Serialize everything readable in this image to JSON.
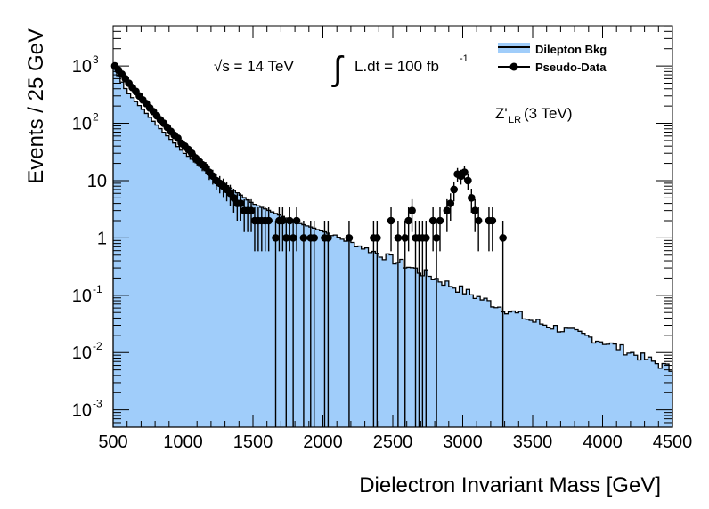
{
  "chart_data": {
    "type": "area",
    "title": "",
    "xlabel": "Dielectron Invariant Mass [GeV]",
    "ylabel": "Events / 25 GeV",
    "xlim": [
      500,
      4500
    ],
    "ylim_log10": [
      -3.3,
      3.7
    ],
    "y_scale": "log",
    "bin_width": 25,
    "x_ticks": [
      500,
      1000,
      1500,
      2000,
      2500,
      3000,
      3500,
      4000,
      4500
    ],
    "y_ticks": [
      {
        "power": -3,
        "base": "10",
        "exp": "-3"
      },
      {
        "power": -2,
        "base": "10",
        "exp": "-2"
      },
      {
        "power": -1,
        "base": "10",
        "exp": "-1"
      },
      {
        "power": 0,
        "base": "1",
        "exp": ""
      },
      {
        "power": 1,
        "base": "10",
        "exp": ""
      },
      {
        "power": 2,
        "base": "10",
        "exp": "2"
      },
      {
        "power": 3,
        "base": "10",
        "exp": "3"
      }
    ],
    "legend": {
      "position": "top-right",
      "entries": [
        {
          "label": "Dilepton Bkg",
          "style": "filled"
        },
        {
          "label": "Pseudo-Data",
          "style": "marker"
        }
      ]
    },
    "annotations": {
      "energy": "√s = 14 TeV",
      "lumi_sign": "∫",
      "lumi_text": "L.dt = 100 fb",
      "lumi_exp": "-1",
      "model_main": "Z'",
      "model_sub": "LR",
      "model_rest": " (3 TeV)"
    },
    "colors": {
      "background_fill": "#a0cdfa",
      "line": "#000000",
      "marker": "#000000"
    },
    "series": [
      {
        "name": "Dilepton Bkg",
        "kind": "histogram",
        "bkg_log10_knots": [
          [
            500,
            3.0
          ],
          [
            600,
            2.55
          ],
          [
            800,
            2.0
          ],
          [
            1000,
            1.5
          ],
          [
            1200,
            1.1
          ],
          [
            1500,
            0.6
          ],
          [
            1800,
            0.28
          ],
          [
            2000,
            0.12
          ],
          [
            2200,
            -0.08
          ],
          [
            2500,
            -0.38
          ],
          [
            2800,
            -0.7
          ],
          [
            3000,
            -0.92
          ],
          [
            3500,
            -1.45
          ],
          [
            4000,
            -1.8
          ],
          [
            4500,
            -2.3
          ]
        ]
      },
      {
        "name": "Pseudo-Data",
        "kind": "points",
        "points": [
          [
            512.5,
            1000
          ],
          [
            537.5,
            850
          ],
          [
            562.5,
            720
          ],
          [
            587.5,
            600
          ],
          [
            612.5,
            500
          ],
          [
            637.5,
            420
          ],
          [
            662.5,
            360
          ],
          [
            687.5,
            300
          ],
          [
            712.5,
            255
          ],
          [
            737.5,
            220
          ],
          [
            762.5,
            185
          ],
          [
            787.5,
            160
          ],
          [
            812.5,
            135
          ],
          [
            837.5,
            115
          ],
          [
            862.5,
            100
          ],
          [
            887.5,
            85
          ],
          [
            912.5,
            72
          ],
          [
            937.5,
            62
          ],
          [
            962.5,
            55
          ],
          [
            987.5,
            45
          ],
          [
            1012.5,
            40
          ],
          [
            1037.5,
            35
          ],
          [
            1062.5,
            30
          ],
          [
            1087.5,
            25
          ],
          [
            1112.5,
            22
          ],
          [
            1137.5,
            19
          ],
          [
            1162.5,
            17
          ],
          [
            1187.5,
            14
          ],
          [
            1212.5,
            12
          ],
          [
            1237.5,
            10
          ],
          [
            1262.5,
            9
          ],
          [
            1287.5,
            8
          ],
          [
            1312.5,
            7
          ],
          [
            1337.5,
            6
          ],
          [
            1362.5,
            5
          ],
          [
            1387.5,
            4
          ],
          [
            1412.5,
            4
          ],
          [
            1437.5,
            3
          ],
          [
            1462.5,
            3
          ],
          [
            1487.5,
            3
          ],
          [
            1512.5,
            2
          ],
          [
            1537.5,
            2
          ],
          [
            1562.5,
            2
          ],
          [
            1587.5,
            2
          ],
          [
            1612.5,
            2
          ],
          [
            1662.5,
            1
          ],
          [
            1687.5,
            2
          ],
          [
            1712.5,
            2
          ],
          [
            1737.5,
            1
          ],
          [
            1762.5,
            2
          ],
          [
            1787.5,
            1
          ],
          [
            1812.5,
            2
          ],
          [
            1862.5,
            1
          ],
          [
            1912.5,
            1
          ],
          [
            1937.5,
            1
          ],
          [
            2012.5,
            1
          ],
          [
            2037.5,
            1
          ],
          [
            2187.5,
            1
          ],
          [
            2362.5,
            1
          ],
          [
            2387.5,
            1
          ],
          [
            2487.5,
            2
          ],
          [
            2537.5,
            1
          ],
          [
            2587.5,
            1
          ],
          [
            2612.5,
            2
          ],
          [
            2637.5,
            3
          ],
          [
            2662.5,
            1
          ],
          [
            2687.5,
            1
          ],
          [
            2712.5,
            1
          ],
          [
            2737.5,
            1
          ],
          [
            2787.5,
            2
          ],
          [
            2812.5,
            1
          ],
          [
            2837.5,
            2
          ],
          [
            2887.5,
            3
          ],
          [
            2912.5,
            4
          ],
          [
            2937.5,
            7
          ],
          [
            2962.5,
            13
          ],
          [
            2987.5,
            12
          ],
          [
            3012.5,
            14
          ],
          [
            3037.5,
            10
          ],
          [
            3062.5,
            5
          ],
          [
            3087.5,
            3
          ],
          [
            3112.5,
            2
          ],
          [
            3187.5,
            2
          ],
          [
            3212.5,
            2
          ],
          [
            3287.5,
            1
          ]
        ]
      }
    ]
  }
}
